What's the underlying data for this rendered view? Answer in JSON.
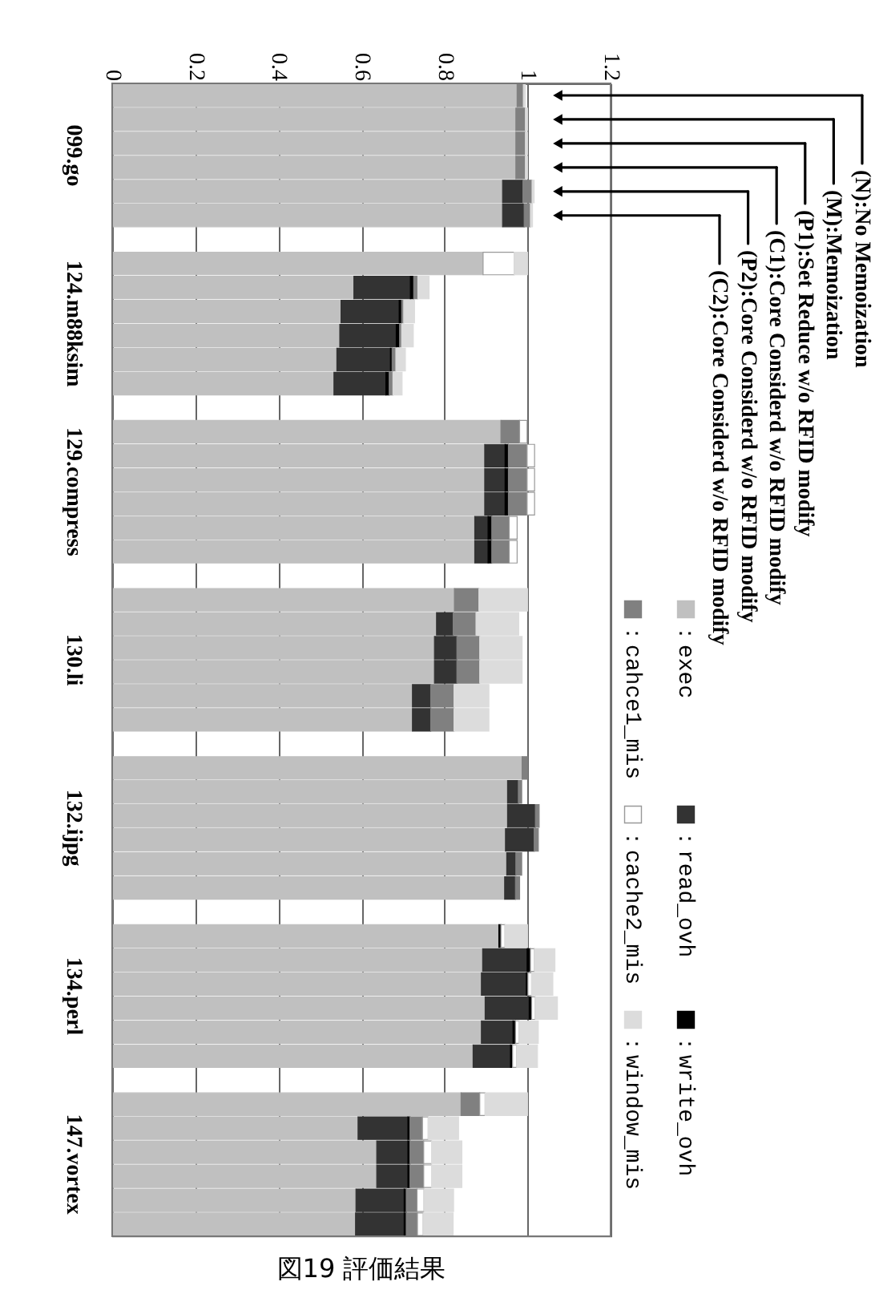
{
  "chart_data": {
    "type": "bar",
    "orientation": "horizontal",
    "stacked": true,
    "title": "図19 評価結果",
    "categories": [
      null,
      null,
      "099.go",
      null,
      null,
      null,
      null,
      null,
      null,
      "124.m88ksim",
      null,
      null,
      null,
      null,
      null,
      null,
      "129.compress",
      null,
      null,
      null,
      null,
      null,
      null,
      "130.li",
      null,
      null,
      null,
      null,
      null,
      null,
      "132.ijpg",
      null,
      null,
      null,
      null,
      null,
      null,
      "134.perl",
      null,
      null,
      null,
      null,
      null,
      null,
      "147.vortex",
      null,
      null,
      null
    ],
    "series": [
      {
        "name": "：exec",
        "color": "#c0c0c0",
        "values": [
          0.975,
          0.972,
          0.972,
          0.972,
          0.94,
          0.94,
          null,
          0.893,
          0.582,
          0.551,
          0.548,
          0.541,
          0.534,
          null,
          0.936,
          0.897,
          0.897,
          0.897,
          0.873,
          0.873,
          null,
          0.824,
          0.781,
          0.776,
          0.776,
          0.723,
          0.723,
          null,
          0.987,
          0.952,
          0.952,
          0.947,
          0.95,
          0.945,
          null,
          0.931,
          0.892,
          0.889,
          0.898,
          0.889,
          0.869,
          null,
          0.84,
          0.592,
          0.637,
          0.637,
          0.587,
          0.586
        ]
      },
      {
        "name": "：read_ovh",
        "color": "#333333",
        "values": [
          null,
          null,
          null,
          null,
          0.049,
          0.052,
          null,
          null,
          0.136,
          0.14,
          0.136,
          0.129,
          0.125,
          null,
          null,
          0.049,
          0.049,
          0.049,
          0.032,
          0.032,
          null,
          null,
          0.04,
          0.054,
          0.054,
          0.044,
          0.044,
          null,
          null,
          0.026,
          0.067,
          0.069,
          0.022,
          0.026,
          null,
          null,
          0.107,
          0.108,
          0.106,
          0.076,
          0.09,
          null,
          null,
          0.12,
          0.075,
          0.075,
          0.116,
          0.117
        ]
      },
      {
        "name": "：write_ovh",
        "color": "#000000",
        "values": [
          null,
          null,
          null,
          null,
          null,
          null,
          null,
          null,
          0.008,
          0.006,
          0.008,
          0.004,
          0.008,
          null,
          null,
          0.008,
          0.008,
          0.008,
          0.009,
          0.009,
          null,
          null,
          null,
          null,
          null,
          null,
          null,
          null,
          null,
          null,
          null,
          null,
          null,
          null,
          null,
          0.005,
          0.008,
          0.004,
          0.006,
          0.006,
          0.005,
          null,
          null,
          0.005,
          0.005,
          0.005,
          0.005,
          0.005
        ]
      },
      {
        "name": "：cahce1_mis",
        "color": "#808080",
        "values": [
          0.015,
          0.023,
          0.023,
          0.023,
          0.022,
          0.015,
          null,
          null,
          0.01,
          0.005,
          0.005,
          0.009,
          0.009,
          null,
          0.045,
          0.045,
          0.045,
          0.045,
          0.042,
          0.042,
          null,
          0.059,
          0.055,
          0.055,
          0.055,
          0.056,
          0.056,
          null,
          0.013,
          0.008,
          0.009,
          0.01,
          0.014,
          0.01,
          null,
          null,
          null,
          null,
          null,
          null,
          null,
          null,
          0.045,
          0.03,
          0.033,
          0.033,
          0.026,
          0.027
        ]
      },
      {
        "name": "：cache2_mis",
        "color": "#ffffff",
        "values": [
          null,
          null,
          null,
          null,
          null,
          null,
          null,
          0.075,
          null,
          null,
          null,
          null,
          null,
          null,
          0.018,
          0.018,
          0.018,
          0.018,
          0.019,
          0.019,
          null,
          null,
          null,
          null,
          null,
          null,
          null,
          null,
          null,
          null,
          null,
          null,
          null,
          null,
          null,
          0.01,
          0.01,
          0.009,
          0.009,
          0.009,
          0.01,
          null,
          0.013,
          0.014,
          0.019,
          0.019,
          0.017,
          0.014
        ]
      },
      {
        "name": "：window_mis",
        "color": "#dcdcdc",
        "values": [
          0.005,
          0.005,
          0.005,
          0.005,
          0.005,
          0.005,
          null,
          0.032,
          0.027,
          0.026,
          0.028,
          0.023,
          0.022,
          null,
          null,
          null,
          null,
          null,
          null,
          null,
          null,
          0.117,
          0.103,
          0.102,
          0.102,
          0.084,
          0.084,
          null,
          null,
          null,
          null,
          null,
          null,
          null,
          null,
          0.054,
          0.049,
          0.051,
          0.053,
          0.046,
          0.05,
          null,
          0.102,
          0.073,
          0.073,
          0.073,
          0.071,
          0.072
        ]
      }
    ],
    "xlim": [
      0,
      1.2
    ],
    "xticks": [
      0,
      0.2,
      0.4,
      0.6,
      0.8,
      1,
      1.2
    ],
    "grid": "x",
    "legend": "right",
    "annotations": [
      "(N):No Memoization",
      "(M):Memoization",
      "(P1):Set Reduce w/o RFID modify",
      "(C1):Core Considerd w/o RFID modify",
      "(P2):Core Considerd w/o RFID modify",
      "(C2):Core Considerd w/o RFID modify"
    ]
  }
}
